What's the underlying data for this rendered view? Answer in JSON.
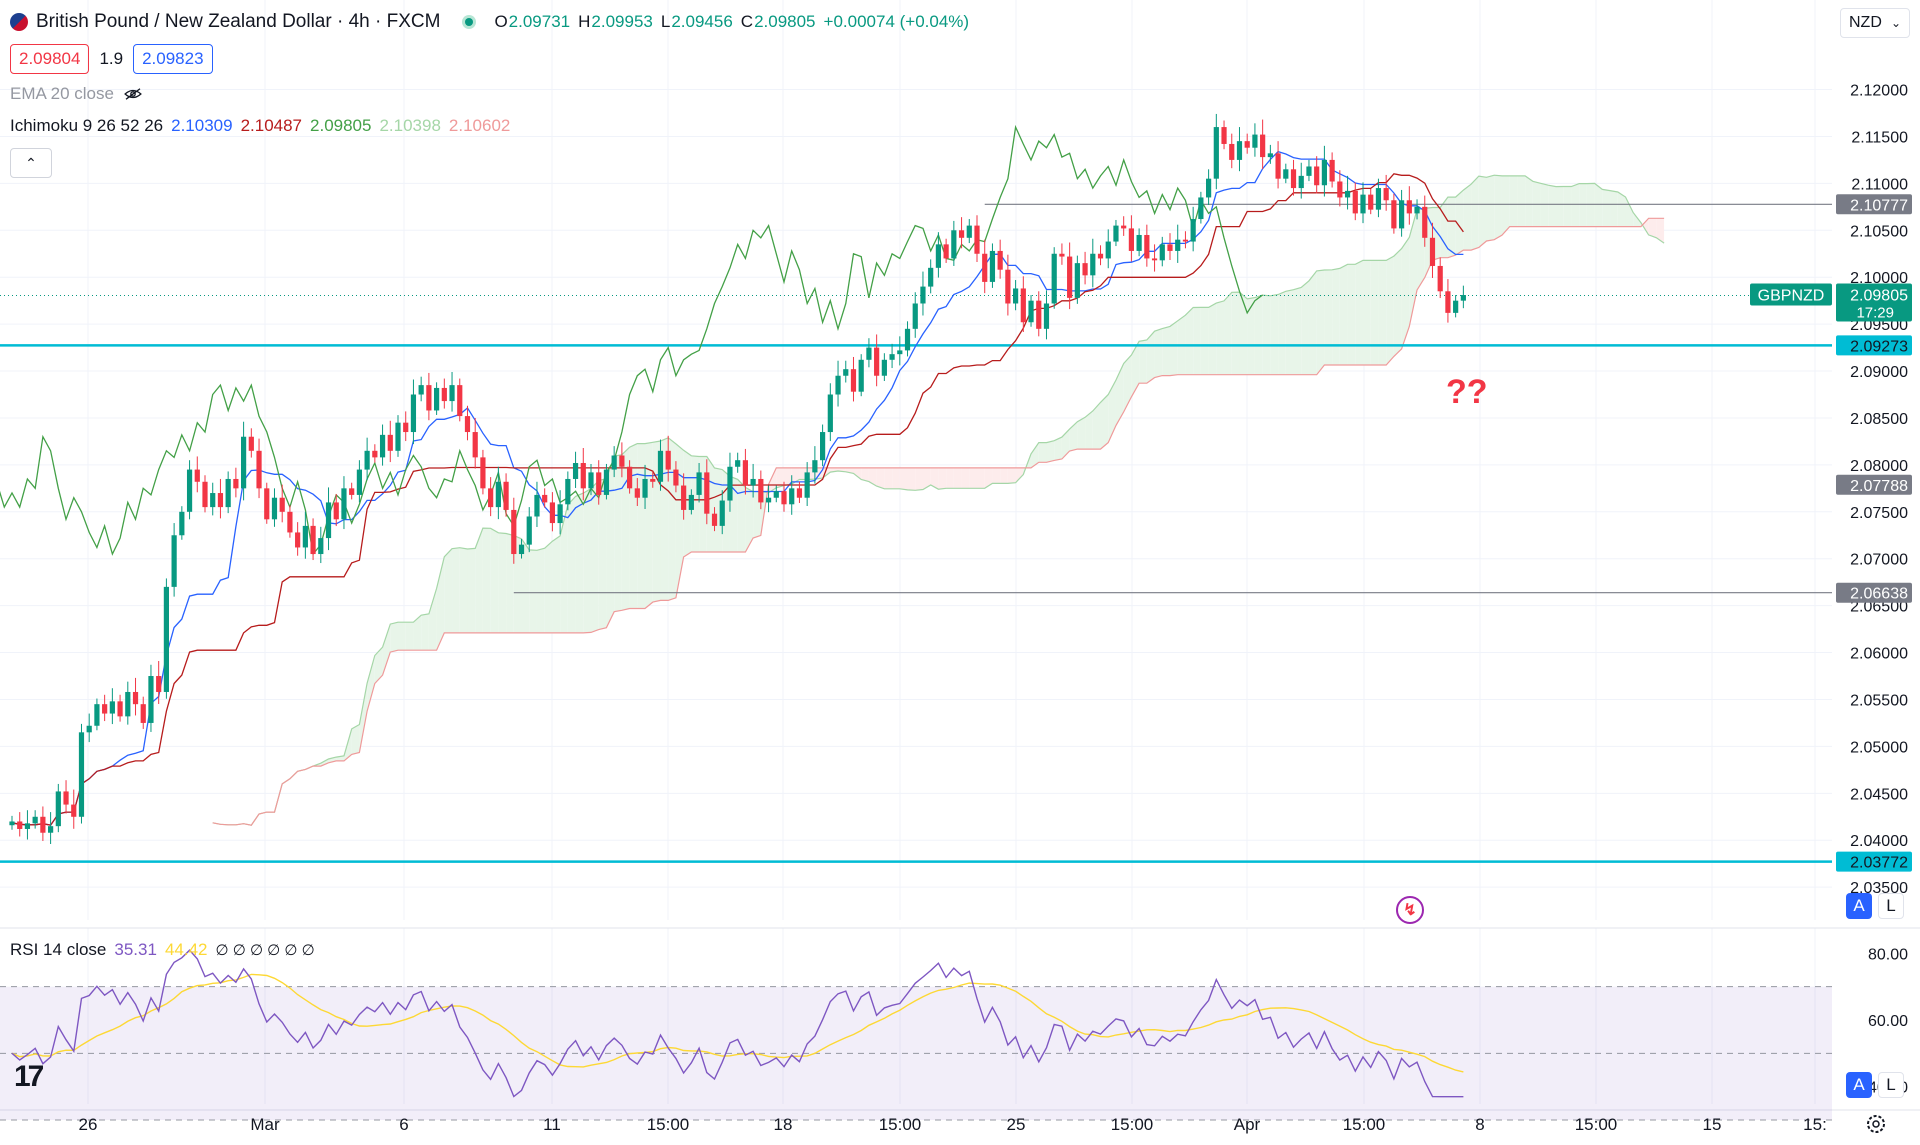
{
  "header": {
    "title": "British Pound / New Zealand Dollar · 4h · FXCM",
    "ohlc": [
      {
        "k": "O",
        "v": "2.09731"
      },
      {
        "k": "H",
        "v": "2.09953"
      },
      {
        "k": "L",
        "v": "2.09456"
      },
      {
        "k": "C",
        "v": "2.09805"
      }
    ],
    "change": "+0.00074 (+0.04%)",
    "sell_price": "2.09804",
    "spread": "1.9",
    "buy_price": "2.09823",
    "currency": "NZD",
    "collapse_icon": "chevron-up-icon"
  },
  "indicators": {
    "ema_label": "EMA 20 close",
    "ichimoku_label": "Ichimoku 9 26 52 26",
    "ichimoku_values": [
      {
        "v": "2.10309",
        "color": "#2962ff"
      },
      {
        "v": "2.10487",
        "color": "#b71c1c"
      },
      {
        "v": "2.09805",
        "color": "#43a047"
      },
      {
        "v": "2.10398",
        "color": "#a5d6a7"
      },
      {
        "v": "2.10602",
        "color": "#ef9a9a"
      }
    ],
    "rsi_label": "RSI 14 close",
    "rsi_value": "35.31",
    "rsi_ma_value": "44.42",
    "rsi_placeholders": "∅ ∅ ∅ ∅ ∅ ∅"
  },
  "annotation": "??",
  "buttons": {
    "auto": "A",
    "log": "L"
  },
  "logo": "17",
  "colors": {
    "up": "#089981",
    "down": "#f23645",
    "tenkan": "#2962ff",
    "kijun": "#b71c1c",
    "chikou": "#43a047",
    "cloud_bull": "#a5d6a7",
    "cloud_bear": "#ef9a9a",
    "level": "#00bcd4",
    "rsi": "#7e57c2",
    "rsi_ma": "#fdd835"
  },
  "chart_data": {
    "type": "candlestick",
    "symbol": "GBPNZD",
    "countdown": "17:29",
    "ylim": [
      2.0315,
      2.124
    ],
    "y_ticks": [
      "2.12000",
      "2.11500",
      "2.11000",
      "2.10500",
      "2.10000",
      "2.09500",
      "2.09000",
      "2.08500",
      "2.08000",
      "2.07500",
      "2.07000",
      "2.06500",
      "2.06000",
      "2.05500",
      "2.05000",
      "2.04500",
      "2.04000",
      "2.03500"
    ],
    "x_ticks": [
      "26",
      "Mar",
      "6",
      "11",
      "15:00",
      "18",
      "15:00",
      "25",
      "15:00",
      "Apr",
      "15:00",
      "8",
      "15:00",
      "15",
      "15:"
    ],
    "last_price": "2.09805",
    "price_labels": [
      {
        "price": "2.10777",
        "style": "grey"
      },
      {
        "price": "2.09273",
        "style": "cyan"
      },
      {
        "price": "2.07788",
        "style": "grey"
      },
      {
        "price": "2.06638",
        "style": "grey"
      },
      {
        "price": "2.03772",
        "style": "cyan"
      }
    ],
    "horizontal_levels": [
      {
        "price": 2.09273,
        "color": "#00bcd4",
        "from_index": 0
      },
      {
        "price": 2.03772,
        "color": "#00bcd4",
        "from_index": 0
      },
      {
        "price": 2.10777,
        "color": "#787b86",
        "from_index": 126
      },
      {
        "price": 2.06638,
        "color": "#787b86",
        "from_index": 65
      }
    ],
    "closes": [
      2.042,
      2.0412,
      2.0418,
      2.0425,
      2.0408,
      2.0415,
      2.0452,
      2.0438,
      2.0425,
      2.0515,
      2.0522,
      2.0545,
      2.0535,
      2.0548,
      2.0532,
      2.0558,
      2.0545,
      2.0525,
      2.0575,
      2.0558,
      2.067,
      2.0725,
      2.075,
      2.0795,
      2.0782,
      2.0755,
      2.077,
      2.0755,
      2.0785,
      2.0775,
      2.083,
      2.0815,
      2.0775,
      2.0742,
      2.0765,
      2.075,
      2.0728,
      2.0712,
      2.0735,
      2.0705,
      2.0722,
      2.076,
      2.0742,
      2.0775,
      2.0768,
      2.0795,
      2.0815,
      2.0808,
      2.0832,
      2.0815,
      2.0845,
      2.0835,
      2.0875,
      2.0885,
      2.0858,
      2.0882,
      2.0868,
      2.0885,
      2.0852,
      2.0835,
      2.0808,
      2.0775,
      2.0755,
      2.0782,
      2.0752,
      2.0705,
      2.0715,
      2.0745,
      2.0768,
      2.076,
      2.0738,
      2.0758,
      2.0785,
      2.0802,
      2.0775,
      2.0792,
      2.0768,
      2.0795,
      2.081,
      2.0798,
      2.0775,
      2.0765,
      2.0785,
      2.0782,
      2.0815,
      2.0795,
      2.0778,
      2.0752,
      2.0768,
      2.0792,
      2.0748,
      2.0735,
      2.0762,
      2.0798,
      2.0805,
      2.0778,
      2.0785,
      2.076,
      2.0765,
      2.0772,
      2.0758,
      2.0775,
      2.0765,
      2.0792,
      2.0805,
      2.0835,
      2.0875,
      2.0895,
      2.0902,
      2.0878,
      2.0912,
      2.0925,
      2.0895,
      2.0912,
      2.0918,
      2.0922,
      2.0945,
      2.0972,
      2.099,
      2.101,
      2.1035,
      2.102,
      2.105,
      2.1042,
      2.1055,
      2.1025,
      2.0995,
      2.1028,
      2.1008,
      2.0972,
      2.0988,
      2.0952,
      2.0975,
      2.0945,
      2.0972,
      2.1025,
      2.1022,
      2.0978,
      2.1015,
      2.1002,
      2.1025,
      2.102,
      2.1038,
      2.1055,
      2.1052,
      2.1028,
      2.1045,
      2.102,
      2.1018,
      2.1035,
      2.1028,
      2.104,
      2.1038,
      2.1062,
      2.1085,
      2.1105,
      2.116,
      2.1142,
      2.1125,
      2.1145,
      2.1138,
      2.1152,
      2.1128,
      2.1132,
      2.1105,
      2.1115,
      2.1095,
      2.1108,
      2.1118,
      2.1098,
      2.1125,
      2.1102,
      2.1085,
      2.1092,
      2.1068,
      2.1088,
      2.1072,
      2.1095,
      2.1082,
      2.1052,
      2.1082,
      2.1068,
      2.1075,
      2.1042,
      2.1012,
      2.0985,
      2.0962,
      2.0975,
      2.0981
    ],
    "tenkan_last": 2.10309,
    "kijun_last": 2.10487,
    "rsi": {
      "ylim": [
        36,
        84
      ],
      "ticks": [
        "80.00",
        "60.00",
        "40.00"
      ],
      "bands": [
        70,
        50,
        30
      ],
      "value": 35.31,
      "ma": 44.42
    }
  }
}
